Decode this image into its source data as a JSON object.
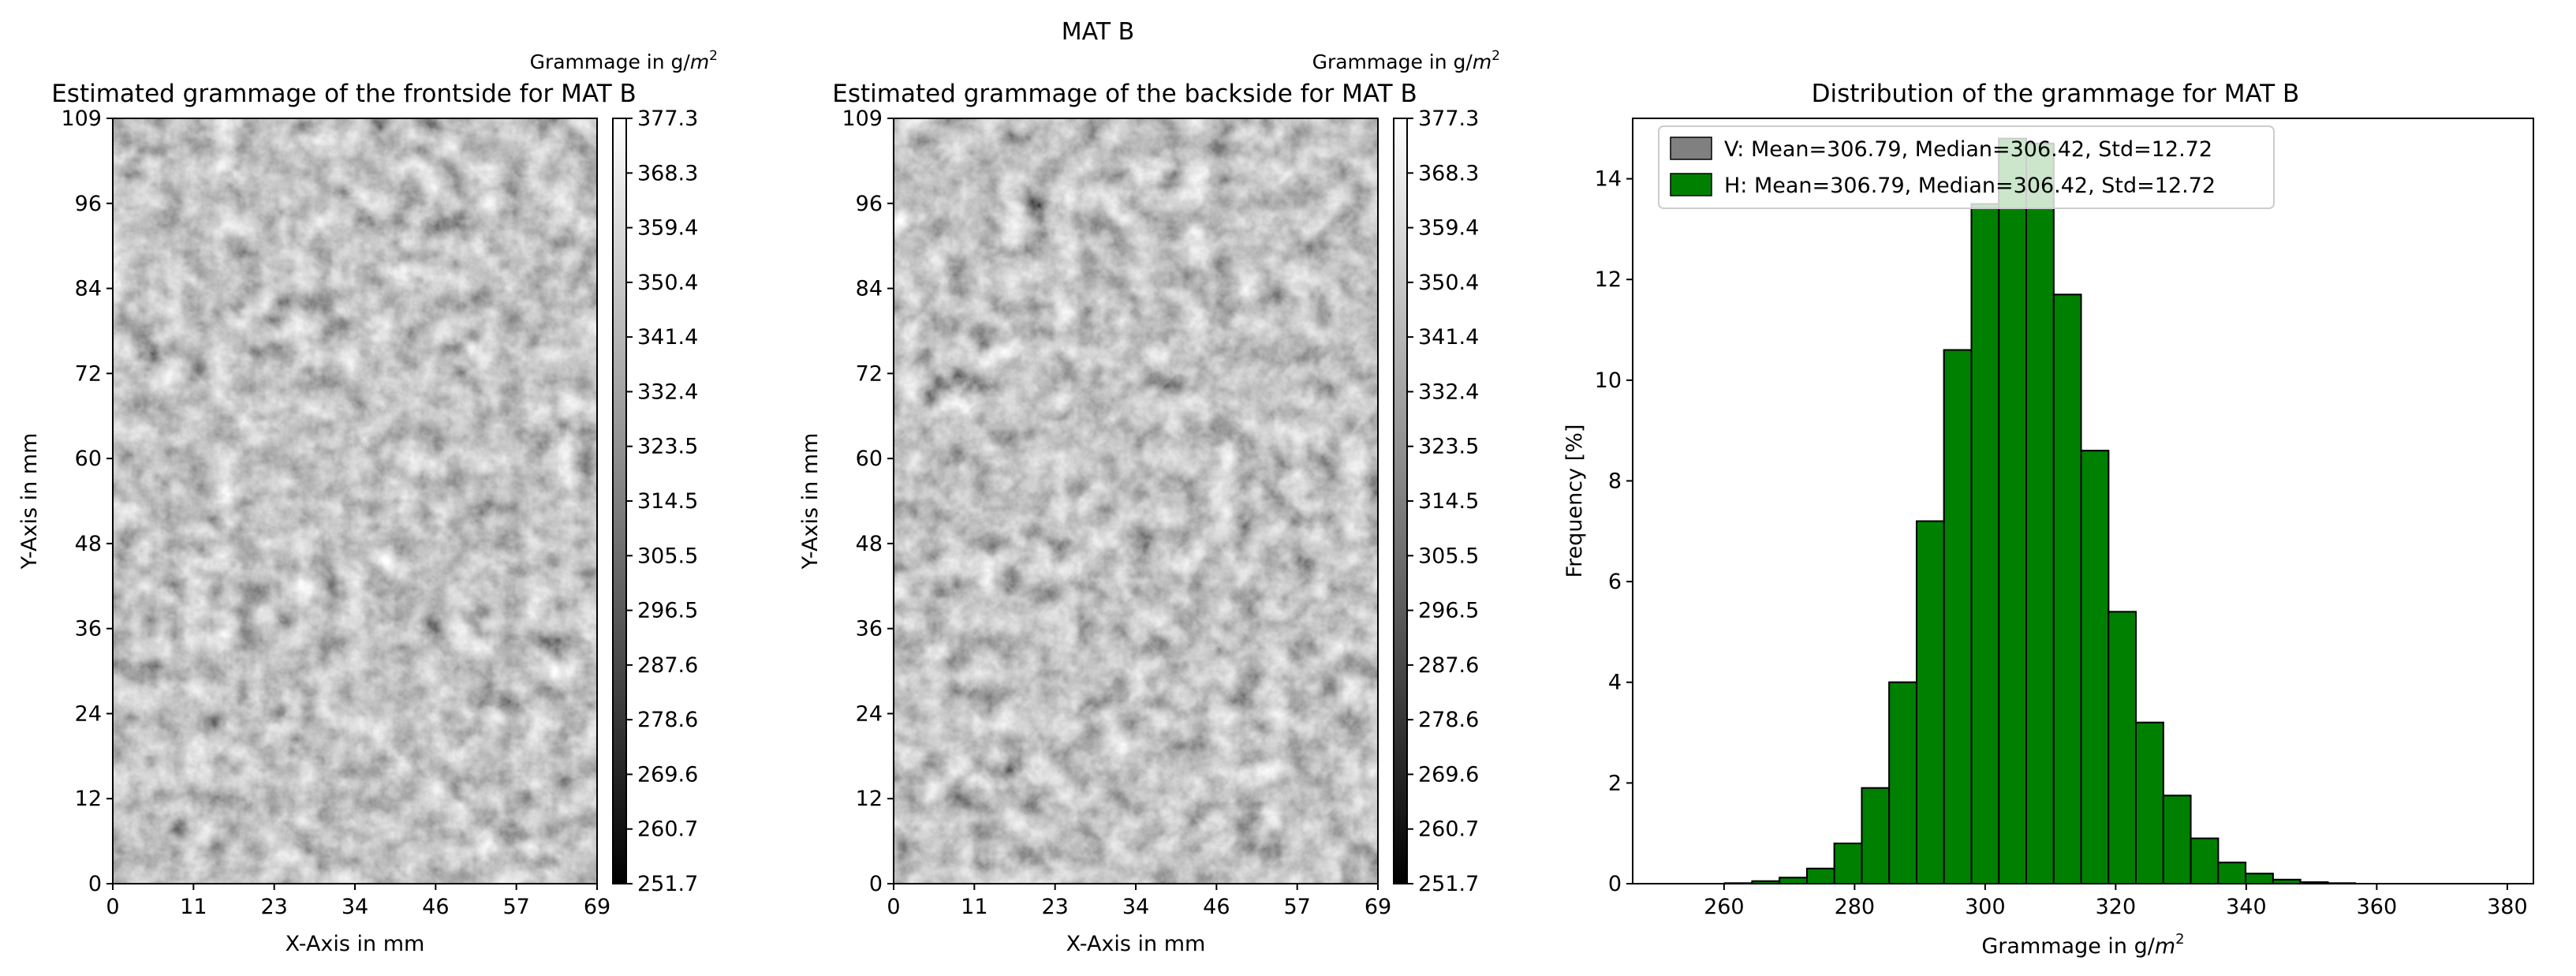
{
  "figure": {
    "suptitle": "MAT B"
  },
  "chart_data": [
    {
      "type": "heatmap",
      "title": "Estimated grammage of the frontside for MAT B",
      "xlabel": "X-Axis in mm",
      "ylabel": "Y-Axis in mm",
      "x_ticks": [
        "0",
        "11",
        "23",
        "34",
        "46",
        "57",
        "69"
      ],
      "y_ticks": [
        "0",
        "12",
        "24",
        "36",
        "48",
        "60",
        "72",
        "84",
        "96",
        "109"
      ],
      "xlim": [
        0,
        69
      ],
      "ylim": [
        0,
        109
      ],
      "colormap": "gray",
      "colorbar_label_prefix": "Grammage in g/",
      "colorbar_label_unit": "m",
      "colorbar_label_exp": "2",
      "colorbar_ticks": [
        "251.7",
        "260.7",
        "269.6",
        "278.6",
        "287.6",
        "296.5",
        "305.5",
        "314.5",
        "323.5",
        "332.4",
        "341.4",
        "350.4",
        "359.4",
        "368.3",
        "377.3"
      ],
      "value_range": [
        251.7,
        377.3
      ]
    },
    {
      "type": "heatmap",
      "title": "Estimated grammage of the backside for MAT B",
      "xlabel": "X-Axis in mm",
      "ylabel": "Y-Axis in mm",
      "x_ticks": [
        "0",
        "11",
        "23",
        "34",
        "46",
        "57",
        "69"
      ],
      "y_ticks": [
        "0",
        "12",
        "24",
        "36",
        "48",
        "60",
        "72",
        "84",
        "96",
        "109"
      ],
      "xlim": [
        0,
        69
      ],
      "ylim": [
        0,
        109
      ],
      "colormap": "gray",
      "colorbar_label_prefix": "Grammage in g/",
      "colorbar_label_unit": "m",
      "colorbar_label_exp": "2",
      "colorbar_ticks": [
        "251.7",
        "260.7",
        "269.6",
        "278.6",
        "287.6",
        "296.5",
        "305.5",
        "314.5",
        "323.5",
        "332.4",
        "341.4",
        "350.4",
        "359.4",
        "368.3",
        "377.3"
      ],
      "value_range": [
        251.7,
        377.3
      ]
    },
    {
      "type": "bar",
      "title": "Distribution of the grammage for MAT B",
      "xlabel_prefix": "Grammage in g/",
      "xlabel_unit": "m",
      "xlabel_exp": "2",
      "ylabel": "Frequency [%]",
      "xlim": [
        246,
        384
      ],
      "ylim": [
        0,
        15.2
      ],
      "x_ticks": [
        260,
        280,
        300,
        320,
        340,
        360,
        380
      ],
      "y_ticks": [
        0,
        2,
        4,
        6,
        8,
        10,
        12,
        14
      ],
      "bin_width": 4.2,
      "bin_starts": [
        251.7,
        255.9,
        260.1,
        264.3,
        268.5,
        272.7,
        276.9,
        281.1,
        285.3,
        289.5,
        293.7,
        297.9,
        302.1,
        306.3,
        310.5,
        314.7,
        318.9,
        323.1,
        327.3,
        331.5,
        335.7,
        339.9,
        344.1,
        348.3,
        352.5,
        356.7,
        360.9,
        365.1,
        369.3,
        373.5
      ],
      "series": [
        {
          "name": "V: Mean=306.79, Median=306.42, Std=12.72",
          "color": "#808080",
          "values": [
            0,
            0,
            0.01,
            0.05,
            0.12,
            0.3,
            0.8,
            1.9,
            4.0,
            7.2,
            10.6,
            13.5,
            14.8,
            14.7,
            11.7,
            8.6,
            5.4,
            3.2,
            1.75,
            0.9,
            0.42,
            0.2,
            0.08,
            0.03,
            0.01,
            0,
            0,
            0,
            0,
            0
          ]
        },
        {
          "name": "H: Mean=306.79, Median=306.42, Std=12.72",
          "color": "#008000",
          "values": [
            0,
            0,
            0.01,
            0.05,
            0.12,
            0.3,
            0.8,
            1.9,
            4.0,
            7.2,
            10.6,
            13.5,
            14.8,
            14.7,
            11.7,
            8.6,
            5.4,
            3.2,
            1.75,
            0.9,
            0.42,
            0.2,
            0.08,
            0.03,
            0.01,
            0,
            0,
            0,
            0,
            0
          ]
        }
      ],
      "legend_position": "upper-left"
    }
  ]
}
